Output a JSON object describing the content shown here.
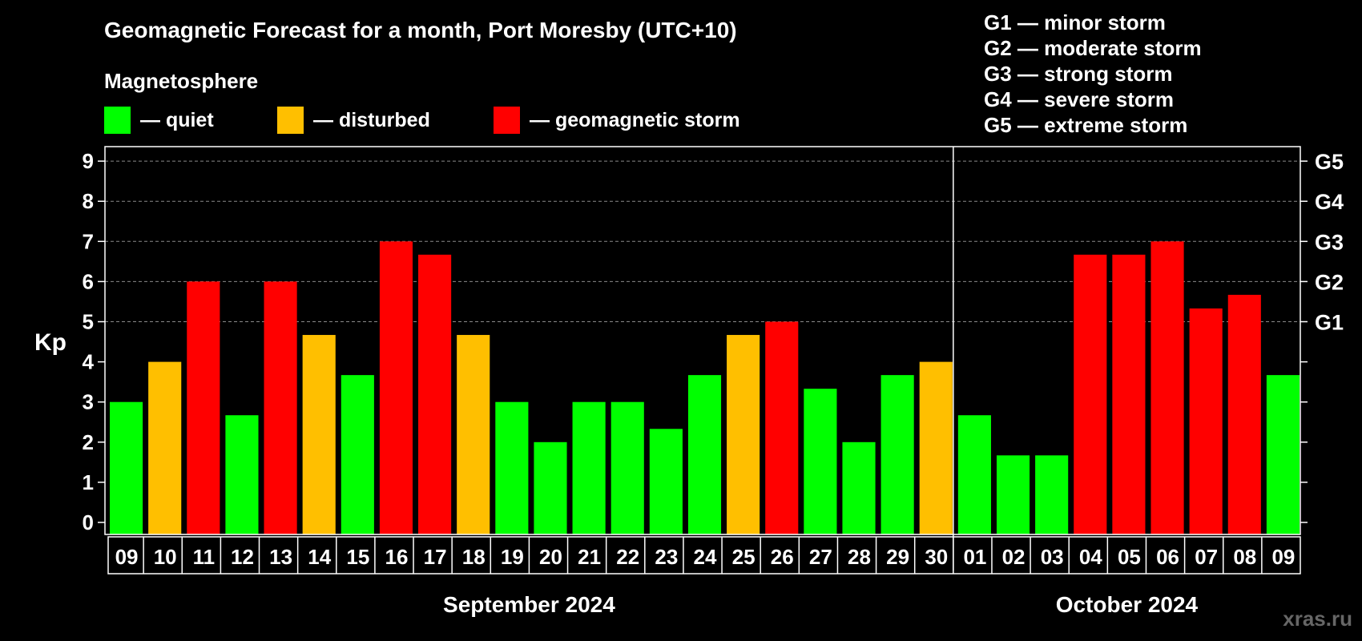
{
  "title": "Geomagnetic Forecast for a month, Port Moresby (UTC+10)",
  "legend": {
    "heading": "Magnetosphere",
    "items": [
      {
        "label": "— quiet",
        "color": "#00ff00"
      },
      {
        "label": "— disturbed",
        "color": "#ffbf00"
      },
      {
        "label": "— geomagnetic storm",
        "color": "#ff0000"
      }
    ]
  },
  "g_scale": [
    "G1 — minor storm",
    "G2 — moderate storm",
    "G3 — strong storm",
    "G4 — severe storm",
    "G5 — extreme storm"
  ],
  "watermark": "xras.ru",
  "chart_data": {
    "type": "bar",
    "ylabel": "Kp",
    "ylim": [
      0,
      9
    ],
    "yticks": [
      0,
      1,
      2,
      3,
      4,
      5,
      6,
      7,
      8,
      9
    ],
    "right_axis_labels": [
      {
        "kp": 5,
        "label": "G1"
      },
      {
        "kp": 6,
        "label": "G2"
      },
      {
        "kp": 7,
        "label": "G3"
      },
      {
        "kp": 8,
        "label": "G4"
      },
      {
        "kp": 9,
        "label": "G5"
      }
    ],
    "grid": "dashed horizontal at Kp 5–9",
    "categories": [
      "09",
      "10",
      "11",
      "12",
      "13",
      "14",
      "15",
      "16",
      "17",
      "18",
      "19",
      "20",
      "21",
      "22",
      "23",
      "24",
      "25",
      "26",
      "27",
      "28",
      "29",
      "30",
      "01",
      "02",
      "03",
      "04",
      "05",
      "06",
      "07",
      "08",
      "09"
    ],
    "values": [
      3,
      4,
      6,
      2.67,
      6,
      4.67,
      3.67,
      7,
      6.67,
      4.67,
      3,
      2,
      3,
      3,
      2.33,
      3.67,
      4.67,
      5,
      3.33,
      2,
      3.67,
      4,
      2.67,
      1.67,
      1.67,
      6.67,
      6.67,
      7,
      5.33,
      5.67,
      3.67
    ],
    "status": [
      "quiet",
      "disturbed",
      "storm",
      "quiet",
      "storm",
      "disturbed",
      "quiet",
      "storm",
      "storm",
      "disturbed",
      "quiet",
      "quiet",
      "quiet",
      "quiet",
      "quiet",
      "quiet",
      "disturbed",
      "storm",
      "quiet",
      "quiet",
      "quiet",
      "disturbed",
      "quiet",
      "quiet",
      "quiet",
      "storm",
      "storm",
      "storm",
      "storm",
      "storm",
      "quiet"
    ],
    "status_colors": {
      "quiet": "#00ff00",
      "disturbed": "#ffbf00",
      "storm": "#ff0000"
    },
    "months": [
      {
        "label": "September 2024",
        "first_index": 0,
        "last_index": 21
      },
      {
        "label": "October 2024",
        "first_index": 22,
        "last_index": 30
      }
    ],
    "month_divider_after_index": 21
  }
}
